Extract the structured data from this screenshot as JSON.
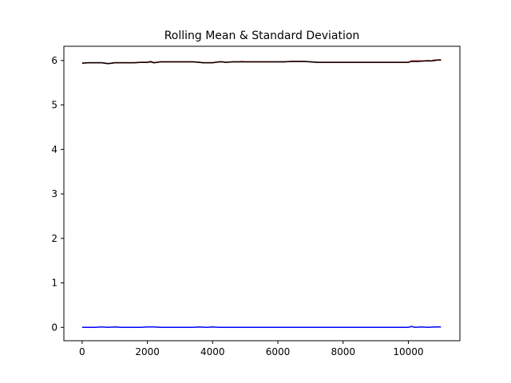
{
  "chart_data": {
    "type": "line",
    "title": "Rolling Mean & Standard Deviation",
    "xlabel": "",
    "ylabel": "",
    "xlim": [
      -560,
      11580
    ],
    "ylim": [
      -0.3,
      6.32
    ],
    "xticks": [
      0,
      2000,
      4000,
      6000,
      8000,
      10000
    ],
    "yticks": [
      0,
      1,
      2,
      3,
      4,
      5,
      6
    ],
    "grid": false,
    "legend": "none",
    "series": [
      {
        "color": "#ff0000",
        "x": [
          0,
          200,
          400,
          600,
          800,
          1000,
          1200,
          1400,
          1600,
          1800,
          2000,
          2100,
          2200,
          2300,
          2400,
          2600,
          2800,
          3000,
          3200,
          3400,
          3600,
          3700,
          3800,
          4000,
          4200,
          4300,
          4400,
          4600,
          4800,
          4900,
          5000,
          5200,
          5400,
          5600,
          5800,
          6000,
          6200,
          6400,
          6600,
          6800,
          7000,
          7200,
          7400,
          7600,
          7800,
          8000,
          8200,
          8400,
          8600,
          8800,
          9000,
          9200,
          9400,
          9600,
          9800,
          10000,
          10100,
          10300,
          10500,
          10600,
          10700,
          10800,
          10900,
          11000
        ],
        "y": [
          5.94,
          5.95,
          5.95,
          5.95,
          5.93,
          5.95,
          5.95,
          5.95,
          5.95,
          5.96,
          5.96,
          5.98,
          5.95,
          5.96,
          5.97,
          5.97,
          5.97,
          5.97,
          5.97,
          5.97,
          5.96,
          5.95,
          5.95,
          5.95,
          5.97,
          5.97,
          5.96,
          5.97,
          5.97,
          5.98,
          5.97,
          5.97,
          5.97,
          5.97,
          5.97,
          5.97,
          5.97,
          5.98,
          5.98,
          5.98,
          5.97,
          5.96,
          5.96,
          5.96,
          5.96,
          5.96,
          5.96,
          5.96,
          5.96,
          5.96,
          5.96,
          5.96,
          5.96,
          5.96,
          5.96,
          5.96,
          5.99,
          5.99,
          5.99,
          6.0,
          5.99,
          6.01,
          6.01,
          6.02
        ]
      },
      {
        "color": "#000000",
        "x": [
          0,
          200,
          400,
          600,
          800,
          1000,
          1200,
          1400,
          1600,
          1800,
          2000,
          2100,
          2200,
          2300,
          2400,
          2600,
          2800,
          3000,
          3200,
          3400,
          3600,
          3700,
          3800,
          4000,
          4200,
          4300,
          4400,
          4600,
          4800,
          4900,
          5000,
          5200,
          5400,
          5600,
          5800,
          6000,
          6200,
          6400,
          6600,
          6800,
          7000,
          7200,
          7400,
          7600,
          7800,
          8000,
          8200,
          8400,
          8600,
          8800,
          9000,
          9200,
          9400,
          9600,
          9800,
          10000,
          10100,
          10300,
          10500,
          10600,
          10700,
          10800,
          10900,
          11000
        ],
        "y": [
          5.94,
          5.95,
          5.95,
          5.95,
          5.93,
          5.95,
          5.95,
          5.95,
          5.95,
          5.96,
          5.96,
          5.97,
          5.95,
          5.96,
          5.97,
          5.97,
          5.97,
          5.97,
          5.97,
          5.97,
          5.96,
          5.95,
          5.95,
          5.95,
          5.97,
          5.97,
          5.96,
          5.97,
          5.97,
          5.97,
          5.97,
          5.97,
          5.97,
          5.97,
          5.97,
          5.97,
          5.97,
          5.98,
          5.98,
          5.98,
          5.97,
          5.96,
          5.96,
          5.96,
          5.96,
          5.96,
          5.96,
          5.96,
          5.96,
          5.96,
          5.96,
          5.96,
          5.96,
          5.96,
          5.96,
          5.96,
          5.98,
          5.98,
          5.99,
          5.99,
          5.99,
          6.0,
          6.01,
          6.01
        ]
      },
      {
        "color": "#0000ff",
        "x": [
          0,
          200,
          400,
          600,
          800,
          1000,
          1200,
          1400,
          1600,
          1800,
          2000,
          2200,
          2400,
          2600,
          2800,
          3000,
          3200,
          3400,
          3600,
          3800,
          4000,
          4200,
          4400,
          4600,
          4800,
          5000,
          5200,
          5400,
          5600,
          5800,
          6000,
          6200,
          6400,
          6600,
          6800,
          7000,
          7200,
          7400,
          7600,
          7800,
          8000,
          8200,
          8400,
          8600,
          8800,
          9000,
          9200,
          9400,
          9600,
          9800,
          10000,
          10100,
          10200,
          10400,
          10600,
          10800,
          11000
        ],
        "y": [
          0.0,
          0.0,
          0.0,
          0.01,
          0.0,
          0.01,
          0.0,
          0.0,
          0.0,
          0.0,
          0.01,
          0.01,
          0.0,
          0.0,
          0.0,
          0.0,
          0.0,
          0.0,
          0.01,
          0.0,
          0.01,
          0.0,
          0.0,
          0.0,
          0.0,
          0.0,
          0.0,
          0.0,
          0.0,
          0.0,
          0.0,
          0.0,
          0.0,
          0.0,
          0.0,
          0.0,
          0.0,
          0.0,
          0.0,
          0.0,
          0.0,
          0.0,
          0.0,
          0.0,
          0.0,
          0.0,
          0.0,
          0.0,
          0.0,
          0.0,
          0.0,
          0.02,
          0.0,
          0.01,
          0.0,
          0.01,
          0.01
        ]
      }
    ]
  }
}
